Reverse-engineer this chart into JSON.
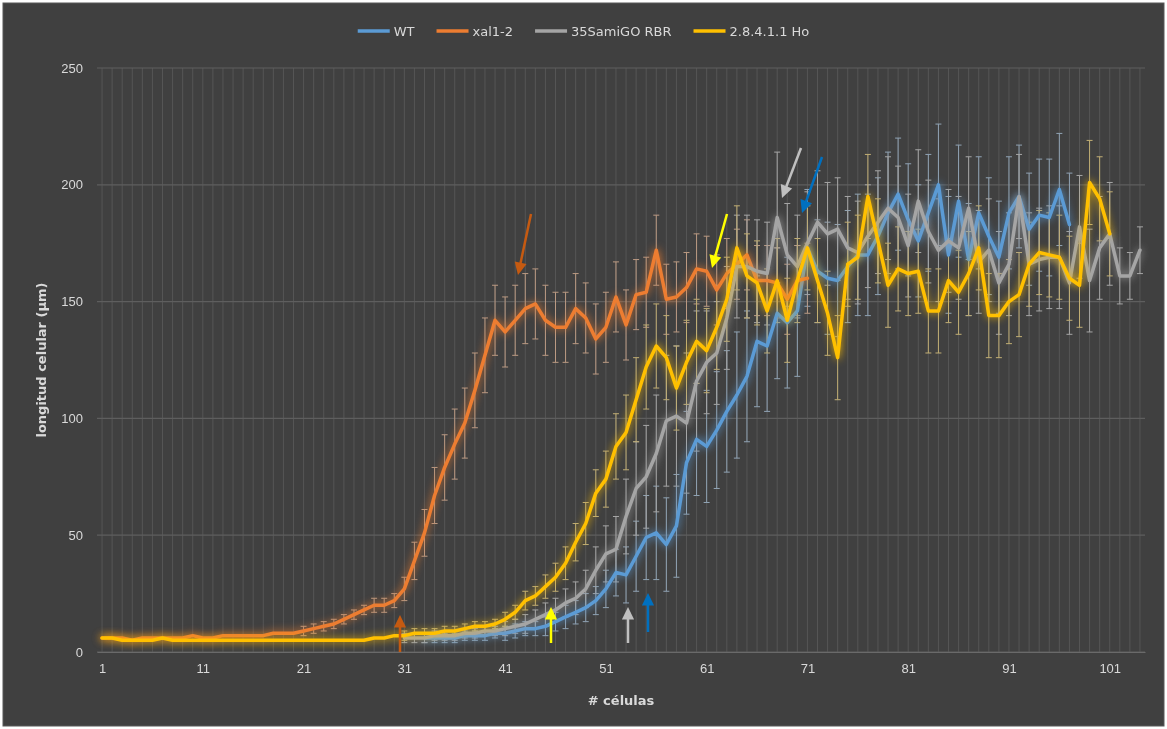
{
  "chart_data": {
    "type": "line",
    "xlabel": "# células",
    "ylabel": "longitud celular (µm)",
    "xlim": [
      0.5,
      104.5
    ],
    "xticks": [
      1,
      11,
      21,
      31,
      41,
      51,
      61,
      71,
      81,
      91,
      101
    ],
    "ylim": [
      0,
      250
    ],
    "yticks": [
      0,
      50,
      100,
      150,
      200,
      250
    ],
    "grid": true,
    "legend": "top",
    "marker": "none",
    "line_style": "solid",
    "x": [
      1,
      2,
      3,
      4,
      5,
      6,
      7,
      8,
      9,
      10,
      11,
      12,
      13,
      14,
      15,
      16,
      17,
      18,
      19,
      20,
      21,
      22,
      23,
      24,
      25,
      26,
      27,
      28,
      29,
      30,
      31,
      32,
      33,
      34,
      35,
      36,
      37,
      38,
      39,
      40,
      41,
      42,
      43,
      44,
      45,
      46,
      47,
      48,
      49,
      50,
      51,
      52,
      53,
      54,
      55,
      56,
      57,
      58,
      59,
      60,
      61,
      62,
      63,
      64,
      65,
      66,
      67,
      68,
      69,
      70,
      71,
      72,
      73,
      74,
      75,
      76,
      77,
      78,
      79,
      80,
      81,
      82,
      83,
      84,
      85,
      86,
      87,
      88,
      89,
      90,
      91,
      92,
      93,
      94,
      95,
      96,
      97,
      98,
      99,
      100,
      101,
      102,
      103,
      104
    ],
    "series": [
      {
        "name": "WT",
        "color": "#5b9bd5",
        "values": [
          null,
          null,
          null,
          null,
          null,
          null,
          null,
          null,
          null,
          null,
          null,
          null,
          null,
          null,
          null,
          null,
          null,
          null,
          null,
          null,
          null,
          null,
          null,
          null,
          null,
          null,
          null,
          null,
          null,
          null,
          null,
          null,
          6,
          6,
          6,
          6,
          7,
          7,
          7,
          8,
          8,
          9,
          10,
          10,
          11,
          13,
          15,
          17,
          19,
          22,
          27,
          34,
          33,
          41,
          49,
          51,
          46,
          54,
          81,
          91,
          88,
          95,
          103,
          110,
          118,
          133,
          131,
          145,
          141,
          146,
          173,
          163,
          160,
          159,
          165,
          170,
          170,
          178,
          188,
          196,
          185,
          176,
          188,
          200,
          170,
          193,
          168,
          188,
          178,
          169,
          188,
          195,
          181,
          187,
          186,
          198,
          183,
          null,
          null,
          null,
          null,
          null,
          null,
          null
        ],
        "errors": [
          null,
          null,
          null,
          null,
          null,
          null,
          null,
          null,
          null,
          null,
          null,
          null,
          null,
          null,
          null,
          null,
          null,
          null,
          null,
          null,
          null,
          null,
          null,
          null,
          null,
          null,
          null,
          null,
          null,
          null,
          null,
          null,
          2,
          2,
          2,
          2,
          2,
          2,
          2,
          2,
          3,
          3,
          3,
          3,
          4,
          4,
          5,
          5,
          6,
          6,
          8,
          10,
          12,
          15,
          18,
          20,
          20,
          22,
          22,
          24,
          24,
          25,
          26,
          27,
          28,
          28,
          28,
          28,
          28,
          28,
          25,
          22,
          24,
          24,
          24,
          26,
          26,
          25,
          26,
          24,
          24,
          24,
          25,
          26,
          25,
          24,
          24,
          24,
          25,
          24,
          24,
          22,
          24,
          24,
          25,
          24,
          22,
          null,
          null,
          null,
          null,
          null,
          null,
          null
        ]
      },
      {
        "name": "xal1-2",
        "color": "#ed7d31",
        "values": [
          6,
          6,
          6,
          5,
          6,
          6,
          6,
          6,
          6,
          7,
          6,
          6,
          7,
          7,
          7,
          7,
          7,
          8,
          8,
          8,
          9,
          10,
          11,
          12,
          14,
          16,
          18,
          20,
          20,
          22,
          27,
          39,
          51,
          67,
          79,
          89,
          98,
          112,
          127,
          142,
          137,
          142,
          147,
          149,
          142,
          139,
          139,
          147,
          143,
          134,
          139,
          152,
          140,
          153,
          154,
          172,
          151,
          152,
          156,
          164,
          163,
          155,
          162,
          166,
          170,
          159,
          159,
          158,
          151,
          159,
          160,
          null,
          null,
          null,
          null,
          null,
          null,
          null,
          null,
          null,
          null,
          null,
          null,
          null,
          null,
          null,
          null,
          null,
          null,
          null,
          null,
          null,
          null,
          null,
          null,
          null,
          null,
          null,
          null,
          null,
          null,
          null,
          null,
          null
        ],
        "errors": [
          null,
          null,
          null,
          null,
          null,
          null,
          null,
          null,
          null,
          null,
          null,
          null,
          null,
          null,
          null,
          null,
          null,
          null,
          null,
          null,
          2,
          2,
          2,
          2,
          2,
          2,
          2,
          3,
          3,
          3,
          5,
          8,
          10,
          12,
          14,
          15,
          15,
          16,
          16,
          15,
          15,
          15,
          15,
          15,
          15,
          15,
          15,
          15,
          15,
          15,
          15,
          15,
          15,
          15,
          15,
          15,
          15,
          15,
          15,
          15,
          15,
          15,
          15,
          15,
          15,
          15,
          15,
          15,
          15,
          15,
          15,
          null,
          null,
          null,
          null,
          null,
          null,
          null,
          null,
          null,
          null,
          null,
          null,
          null,
          null,
          null,
          null,
          null,
          null,
          null,
          null,
          null,
          null,
          null,
          null,
          null,
          null,
          null,
          null,
          null,
          null,
          null,
          null,
          null
        ]
      },
      {
        "name": "35SamiGO RBR",
        "color": "#a5a5a5",
        "values": [
          null,
          null,
          null,
          null,
          null,
          null,
          null,
          null,
          null,
          null,
          null,
          null,
          null,
          null,
          null,
          null,
          null,
          null,
          null,
          null,
          null,
          null,
          null,
          null,
          null,
          null,
          null,
          null,
          null,
          null,
          6,
          6,
          6,
          7,
          7,
          7,
          8,
          8,
          9,
          9,
          10,
          11,
          12,
          14,
          16,
          18,
          21,
          23,
          27,
          35,
          42,
          44,
          58,
          70,
          75,
          85,
          99,
          101,
          98,
          116,
          124,
          128,
          143,
          165,
          165,
          163,
          162,
          186,
          170,
          165,
          175,
          184,
          179,
          181,
          173,
          171,
          178,
          184,
          190,
          186,
          174,
          193,
          180,
          172,
          176,
          173,
          190,
          167,
          172,
          158,
          166,
          195,
          166,
          168,
          169,
          169,
          158,
          182,
          159,
          173,
          179,
          161,
          161,
          172
        ],
        "errors": [
          null,
          null,
          null,
          null,
          null,
          null,
          null,
          null,
          null,
          null,
          null,
          null,
          null,
          null,
          null,
          null,
          null,
          null,
          null,
          null,
          null,
          null,
          null,
          null,
          null,
          null,
          null,
          null,
          null,
          null,
          2,
          2,
          2,
          2,
          2,
          2,
          2,
          2,
          2,
          2,
          3,
          3,
          4,
          4,
          5,
          5,
          6,
          7,
          8,
          10,
          12,
          14,
          16,
          20,
          22,
          25,
          28,
          30,
          30,
          30,
          22,
          22,
          22,
          22,
          22,
          22,
          22,
          28,
          22,
          22,
          22,
          22,
          22,
          22,
          22,
          22,
          22,
          22,
          22,
          22,
          22,
          22,
          22,
          22,
          22,
          22,
          22,
          22,
          22,
          22,
          22,
          18,
          22,
          22,
          22,
          22,
          22,
          22,
          22,
          22,
          22,
          12,
          10,
          10
        ]
      },
      {
        "name": "2.8.4.1.1 Ho",
        "color": "#ffc000",
        "values": [
          6,
          6,
          5,
          5,
          5,
          5,
          6,
          5,
          5,
          5,
          5,
          5,
          5,
          5,
          5,
          5,
          5,
          5,
          5,
          5,
          5,
          5,
          5,
          5,
          5,
          5,
          5,
          6,
          6,
          7,
          7,
          8,
          8,
          8,
          9,
          9,
          10,
          11,
          11,
          12,
          14,
          17,
          22,
          24,
          28,
          32,
          38,
          47,
          55,
          68,
          74,
          88,
          94,
          108,
          122,
          131,
          126,
          113,
          124,
          133,
          129,
          139,
          151,
          173,
          161,
          158,
          146,
          159,
          142,
          159,
          173,
          159,
          145,
          126,
          166,
          169,
          195,
          176,
          157,
          164,
          162,
          163,
          146,
          146,
          159,
          154,
          162,
          173,
          144,
          144,
          150,
          153,
          166,
          171,
          170,
          169,
          160,
          157,
          201,
          194,
          179,
          null,
          null,
          null
        ],
        "errors": [
          null,
          null,
          null,
          null,
          null,
          null,
          null,
          null,
          null,
          null,
          null,
          null,
          null,
          null,
          null,
          null,
          null,
          null,
          null,
          null,
          null,
          null,
          null,
          null,
          null,
          null,
          null,
          null,
          null,
          null,
          2,
          2,
          2,
          2,
          2,
          2,
          2,
          2,
          2,
          2,
          3,
          3,
          4,
          4,
          5,
          6,
          7,
          8,
          9,
          10,
          12,
          14,
          16,
          18,
          18,
          18,
          18,
          18,
          18,
          18,
          18,
          18,
          18,
          18,
          18,
          18,
          18,
          18,
          18,
          18,
          18,
          18,
          18,
          18,
          18,
          18,
          18,
          18,
          18,
          18,
          18,
          18,
          18,
          18,
          18,
          18,
          18,
          18,
          18,
          18,
          18,
          18,
          18,
          18,
          18,
          18,
          18,
          18,
          18,
          18,
          18,
          null,
          null,
          null
        ]
      }
    ]
  }
}
